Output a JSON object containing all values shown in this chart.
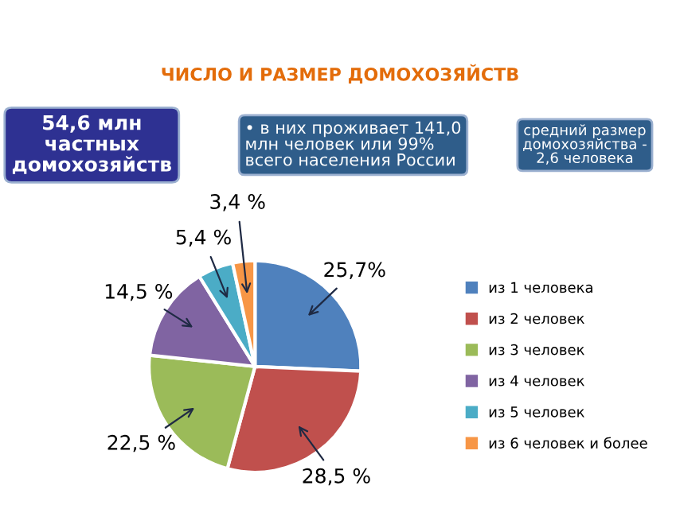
{
  "chart_data": {
    "type": "pie",
    "title": "ЧИСЛО И РАЗМЕР ДОМОХОЗЯЙСТВ",
    "categories": [
      "из 1 человека",
      "из 2 человек",
      "из 3 человек",
      "из 4 человек",
      "из 5 человек",
      "из 6 человек и более"
    ],
    "values": [
      25.7,
      28.5,
      22.5,
      14.5,
      5.4,
      3.4
    ],
    "value_labels": [
      "25,7%",
      "28,5 %",
      "22,5 %",
      "14,5 %",
      "5,4 %",
      "3,4 %"
    ],
    "colors": [
      "#4f81bd",
      "#c0504d",
      "#9bbb59",
      "#8064a2",
      "#4bacc6",
      "#f79646"
    ],
    "annotations": [
      "54,6 млн\nчастных\nдомохозяйств",
      "• в них проживает 141,0\nмлн человек или 99%\nвсего населения России",
      "средний размер\nдомохозяйства -\n2,6 человека"
    ],
    "legend": "right"
  }
}
